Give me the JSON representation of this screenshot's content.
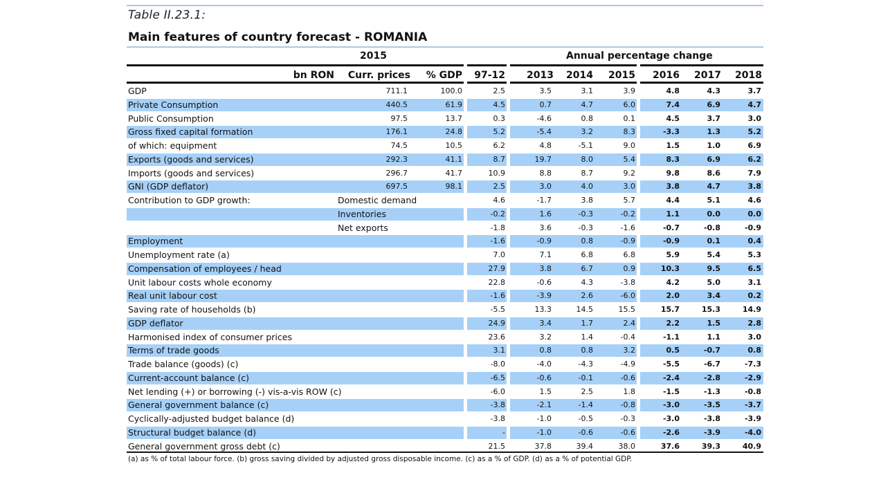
{
  "caption": "Table II.23.1:",
  "title": "Main features of country forecast - ROMANIA",
  "header": {
    "group_2015": "2015",
    "group_annual": "Annual percentage change",
    "columns": [
      "bn RON",
      "Curr. prices",
      "% GDP",
      "97-12",
      "2013",
      "2014",
      "2015",
      "2016",
      "2017",
      "2018"
    ]
  },
  "rows": [
    {
      "label": "GDP",
      "sub": "",
      "curr": "711.1",
      "pct": "100.0",
      "v": [
        "2.5",
        "3.5",
        "3.1",
        "3.9",
        "4.8",
        "4.3",
        "3.7"
      ]
    },
    {
      "label": "Private Consumption",
      "sub": "",
      "curr": "440.5",
      "pct": "61.9",
      "v": [
        "4.5",
        "0.7",
        "4.7",
        "6.0",
        "7.4",
        "6.9",
        "4.7"
      ]
    },
    {
      "label": "Public Consumption",
      "sub": "",
      "curr": "97.5",
      "pct": "13.7",
      "v": [
        "0.3",
        "-4.6",
        "0.8",
        "0.1",
        "4.5",
        "3.7",
        "3.0"
      ]
    },
    {
      "label": "Gross fixed capital formation",
      "sub": "",
      "curr": "176.1",
      "pct": "24.8",
      "v": [
        "5.2",
        "-5.4",
        "3.2",
        "8.3",
        "-3.3",
        "1.3",
        "5.2"
      ]
    },
    {
      "label": "of which: equipment",
      "sub": "",
      "curr": "74.5",
      "pct": "10.5",
      "v": [
        "6.2",
        "4.8",
        "-5.1",
        "9.0",
        "1.5",
        "1.0",
        "6.9"
      ]
    },
    {
      "label": "Exports (goods and services)",
      "sub": "",
      "curr": "292.3",
      "pct": "41.1",
      "v": [
        "8.7",
        "19.7",
        "8.0",
        "5.4",
        "8.3",
        "6.9",
        "6.2"
      ]
    },
    {
      "label": "Imports (goods and services)",
      "sub": "",
      "curr": "296.7",
      "pct": "41.7",
      "v": [
        "10.9",
        "8.8",
        "8.7",
        "9.2",
        "9.8",
        "8.6",
        "7.9"
      ]
    },
    {
      "label": "GNI (GDP deflator)",
      "sub": "",
      "curr": "697.5",
      "pct": "98.1",
      "v": [
        "2.5",
        "3.0",
        "4.0",
        "3.0",
        "3.8",
        "4.7",
        "3.8"
      ]
    },
    {
      "label": "Contribution to GDP growth:",
      "sub": "Domestic demand",
      "curr": "",
      "pct": "",
      "v": [
        "4.6",
        "-1.7",
        "3.8",
        "5.7",
        "4.4",
        "5.1",
        "4.6"
      ]
    },
    {
      "label": "",
      "sub": "Inventories",
      "curr": "",
      "pct": "",
      "v": [
        "-0.2",
        "1.6",
        "-0.3",
        "-0.2",
        "1.1",
        "0.0",
        "0.0"
      ]
    },
    {
      "label": "",
      "sub": "Net exports",
      "curr": "",
      "pct": "",
      "v": [
        "-1.8",
        "3.6",
        "-0.3",
        "-1.6",
        "-0.7",
        "-0.8",
        "-0.9"
      ]
    },
    {
      "label": "Employment",
      "sub": "",
      "curr": "",
      "pct": "",
      "v": [
        "-1.6",
        "-0.9",
        "0.8",
        "-0.9",
        "-0.9",
        "0.1",
        "0.4"
      ]
    },
    {
      "label": "Unemployment rate (a)",
      "sub": "",
      "curr": "",
      "pct": "",
      "v": [
        "7.0",
        "7.1",
        "6.8",
        "6.8",
        "5.9",
        "5.4",
        "5.3"
      ]
    },
    {
      "label": "Compensation of employees / head",
      "sub": "",
      "curr": "",
      "pct": "",
      "v": [
        "27.9",
        "3.8",
        "6.7",
        "0.9",
        "10.3",
        "9.5",
        "6.5"
      ]
    },
    {
      "label": "Unit labour costs whole economy",
      "sub": "",
      "curr": "",
      "pct": "",
      "v": [
        "22.8",
        "-0.6",
        "4.3",
        "-3.8",
        "4.2",
        "5.0",
        "3.1"
      ]
    },
    {
      "label": "Real unit labour cost",
      "sub": "",
      "curr": "",
      "pct": "",
      "v": [
        "-1.6",
        "-3.9",
        "2.6",
        "-6.0",
        "2.0",
        "3.4",
        "0.2"
      ]
    },
    {
      "label": "Saving rate of households (b)",
      "sub": "",
      "curr": "",
      "pct": "",
      "v": [
        "-5.5",
        "13.3",
        "14.5",
        "15.5",
        "15.7",
        "15.3",
        "14.9"
      ]
    },
    {
      "label": "GDP deflator",
      "sub": "",
      "curr": "",
      "pct": "",
      "v": [
        "24.9",
        "3.4",
        "1.7",
        "2.4",
        "2.2",
        "1.5",
        "2.8"
      ]
    },
    {
      "label": "Harmonised index of consumer prices",
      "sub": "",
      "curr": "",
      "pct": "",
      "v": [
        "23.6",
        "3.2",
        "1.4",
        "-0.4",
        "-1.1",
        "1.1",
        "3.0"
      ]
    },
    {
      "label": "Terms of trade goods",
      "sub": "",
      "curr": "",
      "pct": "",
      "v": [
        "3.1",
        "0.8",
        "0.8",
        "3.2",
        "0.5",
        "-0.7",
        "0.8"
      ]
    },
    {
      "label": "Trade balance (goods) (c)",
      "sub": "",
      "curr": "",
      "pct": "",
      "v": [
        "-8.0",
        "-4.0",
        "-4.3",
        "-4.9",
        "-5.5",
        "-6.7",
        "-7.3"
      ]
    },
    {
      "label": "Current-account balance (c)",
      "sub": "",
      "curr": "",
      "pct": "",
      "v": [
        "-6.5",
        "-0.6",
        "-0.1",
        "-0.6",
        "-2.4",
        "-2.8",
        "-2.9"
      ]
    },
    {
      "label": "Net lending (+) or borrowing (-) vis-a-vis ROW (c)",
      "sub": "",
      "curr": "",
      "pct": "",
      "v": [
        "-6.0",
        "1.5",
        "2.5",
        "1.8",
        "-1.5",
        "-1.3",
        "-0.8"
      ]
    },
    {
      "label": "General government balance (c)",
      "sub": "",
      "curr": "",
      "pct": "",
      "v": [
        "-3.8",
        "-2.1",
        "-1.4",
        "-0.8",
        "-3.0",
        "-3.5",
        "-3.7"
      ]
    },
    {
      "label": "Cyclically-adjusted budget balance (d)",
      "sub": "",
      "curr": "",
      "pct": "",
      "v": [
        "-3.8",
        "-1.0",
        "-0.5",
        "-0.3",
        "-3.0",
        "-3.8",
        "-3.9"
      ]
    },
    {
      "label": "Structural budget balance (d)",
      "sub": "",
      "curr": "",
      "pct": "",
      "v": [
        "-",
        "-1.0",
        "-0.6",
        "-0.6",
        "-2.6",
        "-3.9",
        "-4.0"
      ]
    },
    {
      "label": "General government gross debt (c)",
      "sub": "",
      "curr": "",
      "pct": "",
      "v": [
        "21.5",
        "37.8",
        "39.4",
        "38.0",
        "37.6",
        "39.3",
        "40.9"
      ]
    }
  ],
  "footnote": "(a) as % of total labour force. (b) gross saving divided by adjusted gross disposable income.  (c) as a % of  GDP. (d) as a % of  potential GDP.",
  "colors": {
    "band": "#a6d0f7",
    "accent_line": "#a8c8e6",
    "rule": "#111111"
  }
}
